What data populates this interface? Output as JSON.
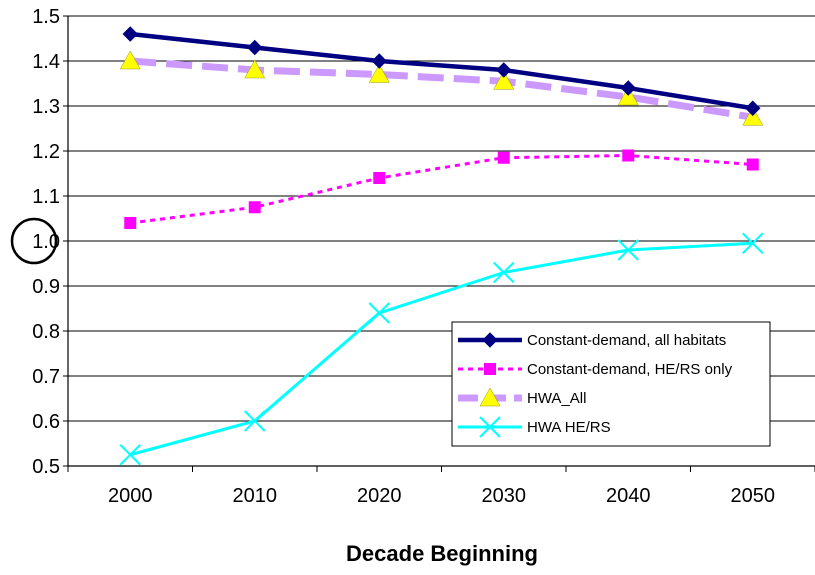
{
  "chart_data": {
    "type": "line",
    "title": "",
    "xlabel": "Decade Beginning",
    "ylabel": "",
    "categories": [
      "2000",
      "2010",
      "2020",
      "2030",
      "2040",
      "2050"
    ],
    "ylim": [
      0.5,
      1.5
    ],
    "yticks": [
      "0.5",
      "0.6",
      "0.7",
      "0.8",
      "0.9",
      "1.0",
      "1.1",
      "1.2",
      "1.3",
      "1.4",
      "1.5"
    ],
    "highlighted_ytick": "1.0",
    "grid": "horizontal",
    "legend_position": "bottom-right",
    "series": [
      {
        "name": "Constant-demand,  all habitats",
        "values": [
          1.46,
          1.43,
          1.4,
          1.38,
          1.34,
          1.295
        ],
        "color": "#000080",
        "line": "solid",
        "marker": "diamond"
      },
      {
        "name": "Constant-demand, HE/RS only",
        "values": [
          1.04,
          1.075,
          1.14,
          1.185,
          1.19,
          1.17
        ],
        "color": "#ff00ff",
        "line": "dotted",
        "marker": "square"
      },
      {
        "name": "HWA_All",
        "values": [
          1.4,
          1.38,
          1.37,
          1.355,
          1.32,
          1.275
        ],
        "color": "#cc99ff",
        "line": "dashed",
        "marker": "triangle",
        "marker_color": "#ffff00"
      },
      {
        "name": "HWA HE/RS",
        "values": [
          0.525,
          0.6,
          0.84,
          0.93,
          0.98,
          0.995
        ],
        "color": "#00ffff",
        "line": "solid",
        "marker": "x"
      }
    ]
  }
}
